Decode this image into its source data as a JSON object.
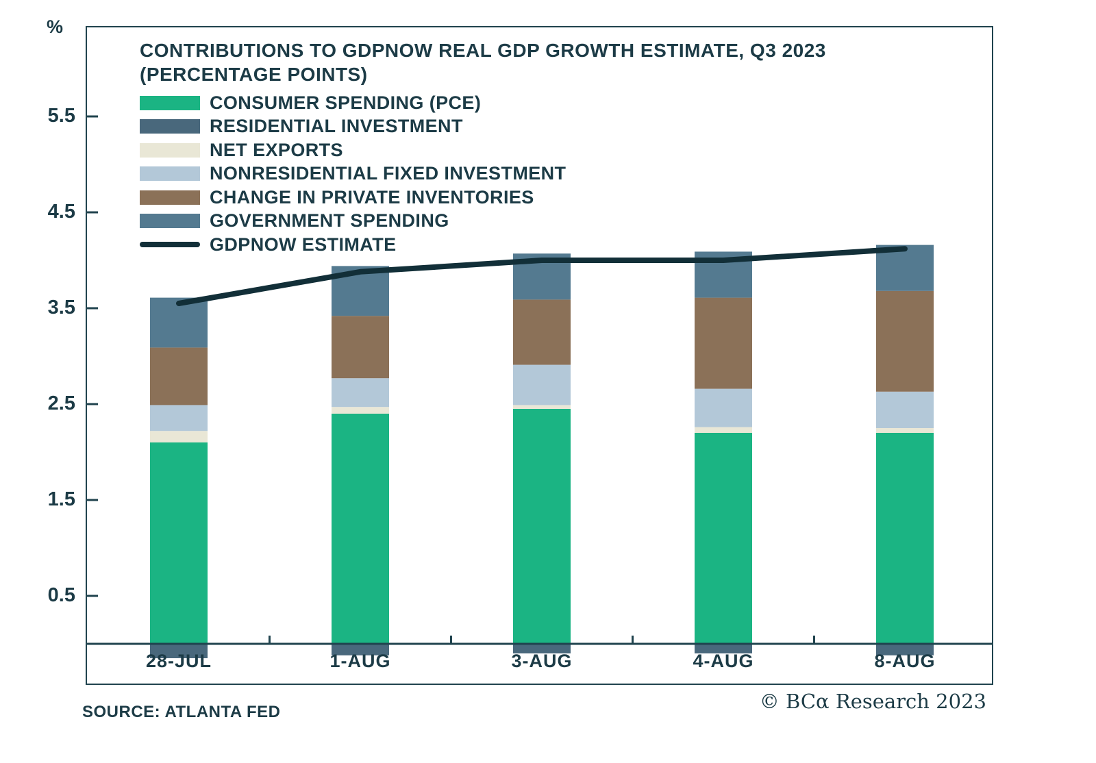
{
  "meta": {
    "source": "SOURCE: ATLANTA FED",
    "copyright": "© BCα Research 2023"
  },
  "chart_data": {
    "type": "bar",
    "title_line1": "CONTRIBUTIONS TO GDPNOW REAL GDP GROWTH ESTIMATE, Q3 2023",
    "title_line2": "(PERCENTAGE POINTS)",
    "y_axis_unit": "%",
    "categories": [
      "28-JUL",
      "1-AUG",
      "3-AUG",
      "4-AUG",
      "8-AUG"
    ],
    "series": [
      {
        "name": "CONSUMER SPENDING (PCE)",
        "color": "#1bb483",
        "values": [
          2.1,
          2.4,
          2.45,
          2.2,
          2.2
        ]
      },
      {
        "name": "RESIDENTIAL INVESTMENT",
        "color": "#49687c",
        "values": [
          -0.15,
          -0.12,
          -0.1,
          -0.1,
          -0.12
        ]
      },
      {
        "name": "NET EXPORTS",
        "color": "#e9e7d6",
        "values": [
          0.12,
          0.07,
          0.04,
          0.06,
          0.05
        ]
      },
      {
        "name": "NONRESIDENTIAL FIXED INVESTMENT",
        "color": "#b3c8d8",
        "values": [
          0.27,
          0.3,
          0.42,
          0.4,
          0.38
        ]
      },
      {
        "name": "CHANGE IN PRIVATE INVENTORIES",
        "color": "#8b7158",
        "values": [
          0.6,
          0.65,
          0.68,
          0.95,
          1.05
        ]
      },
      {
        "name": "GOVERNMENT SPENDING",
        "color": "#547a90",
        "values": [
          0.52,
          0.52,
          0.48,
          0.48,
          0.48
        ]
      }
    ],
    "line_series": {
      "name": "GDPNOW ESTIMATE",
      "color": "#122f38",
      "values": [
        3.55,
        3.88,
        4.0,
        4.0,
        4.12
      ]
    },
    "y_ticks": [
      0.5,
      1.5,
      2.5,
      3.5,
      4.5,
      5.5
    ],
    "ylim": [
      -0.3,
      6.1
    ],
    "axis_color": "#20434e",
    "grid": false,
    "legend_position": "top-left"
  }
}
